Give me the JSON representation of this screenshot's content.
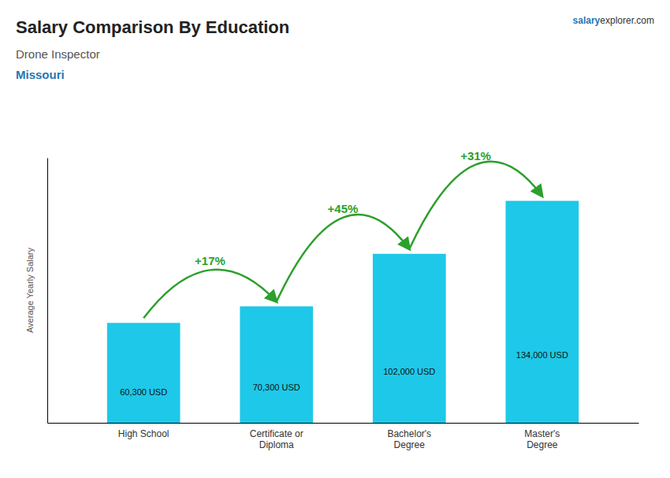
{
  "chart_data": {
    "type": "bar",
    "title": "Salary Comparison By Education",
    "subtitle": "Drone Inspector",
    "location": "Missouri",
    "brand": [
      "salary",
      "explorer.com"
    ],
    "ylabel": "Average Yearly Salary",
    "categories": [
      "High School",
      "Certificate or\nDiploma",
      "Bachelor's\nDegree",
      "Master's\nDegree"
    ],
    "values": [
      60300,
      70300,
      102000,
      134000
    ],
    "value_labels": [
      "60,300 USD",
      "70,300 USD",
      "102,000 USD",
      "134,000 USD"
    ],
    "data_labels": true,
    "annotations": [
      "+17%",
      "+45%",
      "+31%"
    ],
    "color": "#1EC8E8",
    "ylim": [
      0,
      160000
    ],
    "tick_labels": "x",
    "grid": false
  }
}
